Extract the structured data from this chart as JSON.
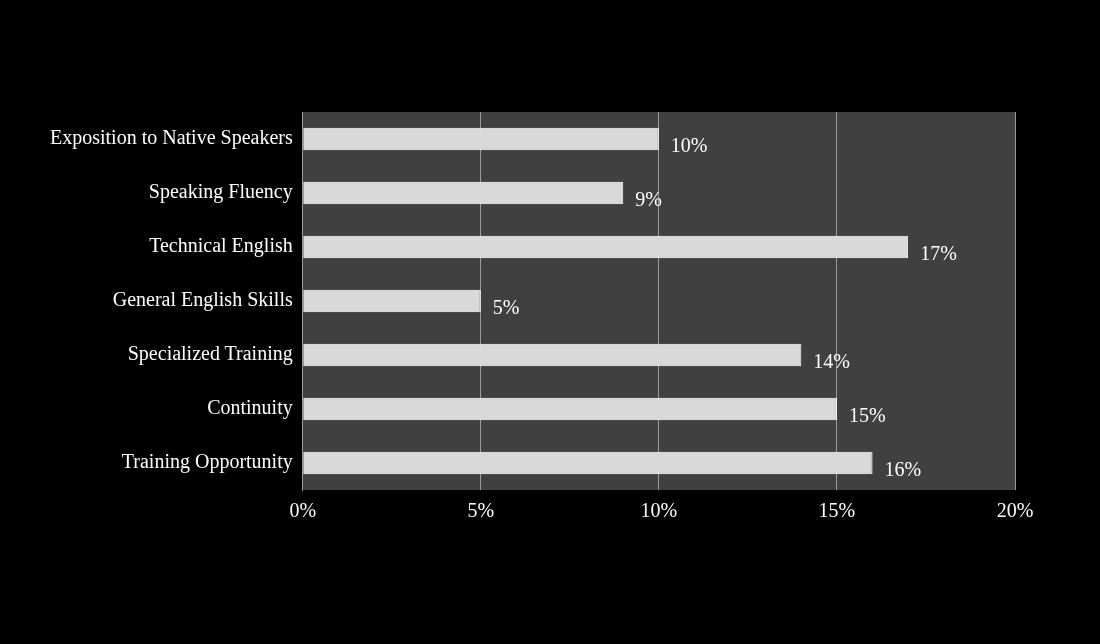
{
  "chart_data": {
    "type": "bar",
    "orientation": "horizontal",
    "categories": [
      "Exposition to Native Speakers",
      "Speaking Fluency",
      "Technical English",
      "General English Skills",
      "Specialized Training",
      "Continuity",
      "Training Opportunity"
    ],
    "values": [
      10,
      9,
      17,
      5,
      14,
      15,
      16
    ],
    "value_labels": [
      "10%",
      "9%",
      "17%",
      "5%",
      "14%",
      "15%",
      "16%"
    ],
    "color": "#d9d9d9",
    "xlim": [
      0,
      20
    ],
    "xticks": [
      {
        "value": 0,
        "label": "0%"
      },
      {
        "value": 5,
        "label": "5%"
      },
      {
        "value": 10,
        "label": "10%"
      },
      {
        "value": 15,
        "label": "15%"
      },
      {
        "value": 20,
        "label": "20%"
      }
    ],
    "grid": "x",
    "legend": false
  }
}
